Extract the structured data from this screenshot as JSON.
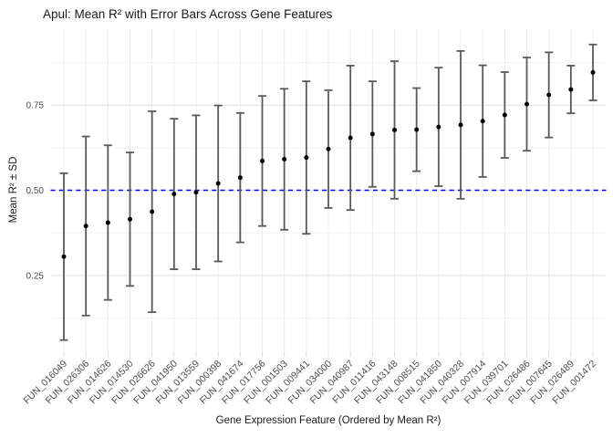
{
  "chart_data": {
    "type": "errorbar",
    "title": "Apul: Mean R² with Error Bars Across Gene Features",
    "xlabel": "Gene Expression Feature (Ordered by Mean R²)",
    "ylabel": "Mean R² ± SD",
    "categories": [
      "FUN_016049",
      "FUN_026306",
      "FUN_014626",
      "FUN_014530",
      "FUN_026626",
      "FUN_041950",
      "FUN_013559",
      "FUN_000398",
      "FUN_041674",
      "FUN_017756",
      "FUN_001503",
      "FUN_009441",
      "FUN_034000",
      "FUN_040987",
      "FUN_011416",
      "FUN_043148",
      "FUN_008515",
      "FUN_041850",
      "FUN_040328",
      "FUN_007914",
      "FUN_039701",
      "FUN_026486",
      "FUN_007645",
      "FUN_026489",
      "FUN_001472"
    ],
    "series": [
      {
        "name": "Mean R²",
        "means": [
          0.305,
          0.395,
          0.405,
          0.415,
          0.437,
          0.489,
          0.494,
          0.52,
          0.537,
          0.586,
          0.591,
          0.596,
          0.621,
          0.654,
          0.665,
          0.677,
          0.678,
          0.686,
          0.692,
          0.703,
          0.721,
          0.753,
          0.78,
          0.796,
          0.846
        ],
        "sds": [
          0.245,
          0.263,
          0.227,
          0.196,
          0.295,
          0.221,
          0.226,
          0.229,
          0.19,
          0.191,
          0.207,
          0.224,
          0.173,
          0.212,
          0.155,
          0.202,
          0.122,
          0.174,
          0.217,
          0.164,
          0.126,
          0.137,
          0.125,
          0.07,
          0.082
        ]
      }
    ],
    "yticks": [
      {
        "value": 0.25,
        "label": "0.25"
      },
      {
        "value": 0.5,
        "label": "0.50"
      },
      {
        "value": 0.75,
        "label": "0.75"
      }
    ],
    "yticks_minor": [
      0.125,
      0.375,
      0.625,
      0.875
    ],
    "ylim": [
      0.027,
      0.973
    ],
    "reference_line": {
      "y": 0.5,
      "style": "dashed",
      "color": "#0000EE"
    },
    "grid": true,
    "legend": "none",
    "colors": {
      "point": "#000000",
      "errorbar": "#5a5a5a",
      "grid_major": "#e3e3e3",
      "grid_minor": "#efefef",
      "grid_vertical": "#eaeaea",
      "axis_tick": "#dcdcdc",
      "axis_text": "#4d4d4d",
      "title_text": "#1a1a1a"
    }
  }
}
